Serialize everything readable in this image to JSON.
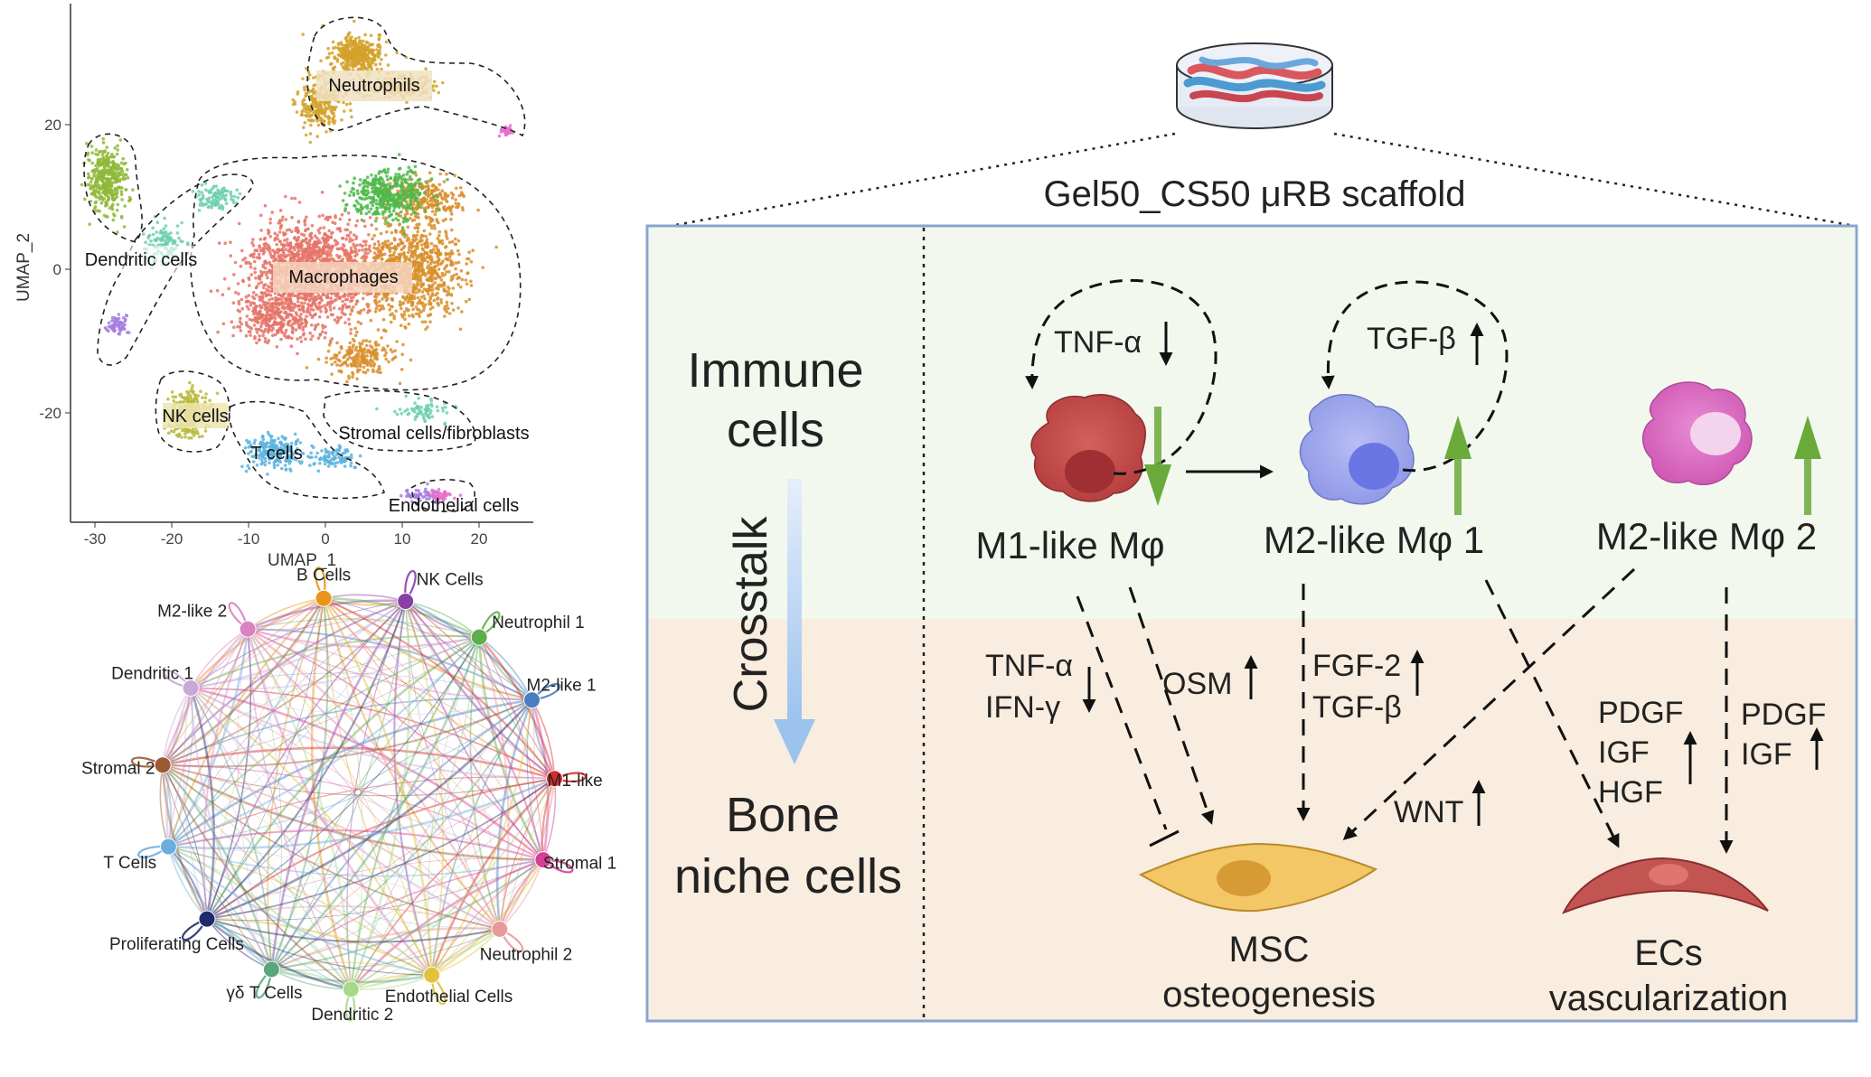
{
  "umap": {
    "ylabel": "UMAP_2",
    "xlabel": "UMAP_1",
    "x_ticks": [
      "-30",
      "-20",
      "-10",
      "0",
      "10",
      "20"
    ],
    "y_ticks": [
      "20",
      "0",
      "-20"
    ],
    "clusters": {
      "neutrophils": "Neutrophils",
      "dendritic": "Dendritic cells",
      "macrophages": "Macrophages",
      "nk": "NK cells",
      "tcells": "T cells",
      "stromal": "Stromal cells/fibroblasts",
      "endothelial": "Endothelial cells"
    },
    "colors": {
      "neutrophils": "#d4a22a",
      "macrophages_red": "#e57468",
      "macrophages_orange": "#d88f2c",
      "green": "#4db84a",
      "dendritic": "#8fb83a",
      "teal": "#6ecfb0",
      "nk": "#b8b83a",
      "tcells": "#5bb3de",
      "purple": "#a57be0",
      "pink": "#e66fd0"
    }
  },
  "network": {
    "nodes": [
      {
        "label": "B Cells",
        "color": "#e8951a"
      },
      {
        "label": "NK Cells",
        "color": "#8a3fa5"
      },
      {
        "label": "Neutrophil 1",
        "color": "#5fae4c"
      },
      {
        "label": "M2-like 1",
        "color": "#4a7cc0"
      },
      {
        "label": "M1-like",
        "color": "#d62b2b"
      },
      {
        "label": "Stromal 1",
        "color": "#d63f94"
      },
      {
        "label": "Neutrophil 2",
        "color": "#e89a9a"
      },
      {
        "label": "Endothelial Cells",
        "color": "#e2c23a"
      },
      {
        "label": "Dendritic 2",
        "color": "#a8d98a"
      },
      {
        "label": "γδ T Cells",
        "color": "#5aa67a"
      },
      {
        "label": "Proliferating Cells",
        "color": "#1f2a6b"
      },
      {
        "label": "T Cells",
        "color": "#6aaee0"
      },
      {
        "label": "Stromal 2",
        "color": "#9a5a32"
      },
      {
        "label": "Dendritic 1",
        "color": "#c8a8d8"
      },
      {
        "label": "M2-like 2",
        "color": "#d982c2"
      }
    ]
  },
  "diagram": {
    "scaffold_title": "Gel50_CS50 μRB scaffold",
    "immune_cells": [
      "Immune",
      "cells"
    ],
    "crosstalk": "Crosstalk",
    "bone_niche": [
      "Bone",
      "niche cells"
    ],
    "m1_label": "M1-like Mφ",
    "m2_1_label": "M2-like Mφ 1",
    "m2_2_label": "M2-like Mφ 2",
    "tnf_a_top": "TNF-α",
    "tgf_b_top": "TGF-β",
    "tnf_a": "TNF-α",
    "ifn_g": "IFN-γ",
    "osm": "OSM",
    "fgf2": "FGF-2",
    "tgf_b": "TGF-β",
    "wnt": "WNT",
    "pdgf1": "PDGF",
    "igf1": "IGF",
    "hgf": "HGF",
    "pdgf2": "PDGF",
    "igf2": "IGF",
    "msc": [
      "MSC",
      "osteogenesis"
    ],
    "ecs": [
      "ECs",
      "vascularization"
    ],
    "colors": {
      "immune_bg": "#f2f8ee",
      "bone_bg": "#f8eddf",
      "frame": "#8aa4cc",
      "up_arrow": "#6aaa3a",
      "m1_cell": "#c6504f",
      "m2_1_cell": "#a3abee",
      "m2_2_cell": "#de6fc5",
      "msc_cell": "#f3c766",
      "ec_cell": "#c25552"
    }
  }
}
